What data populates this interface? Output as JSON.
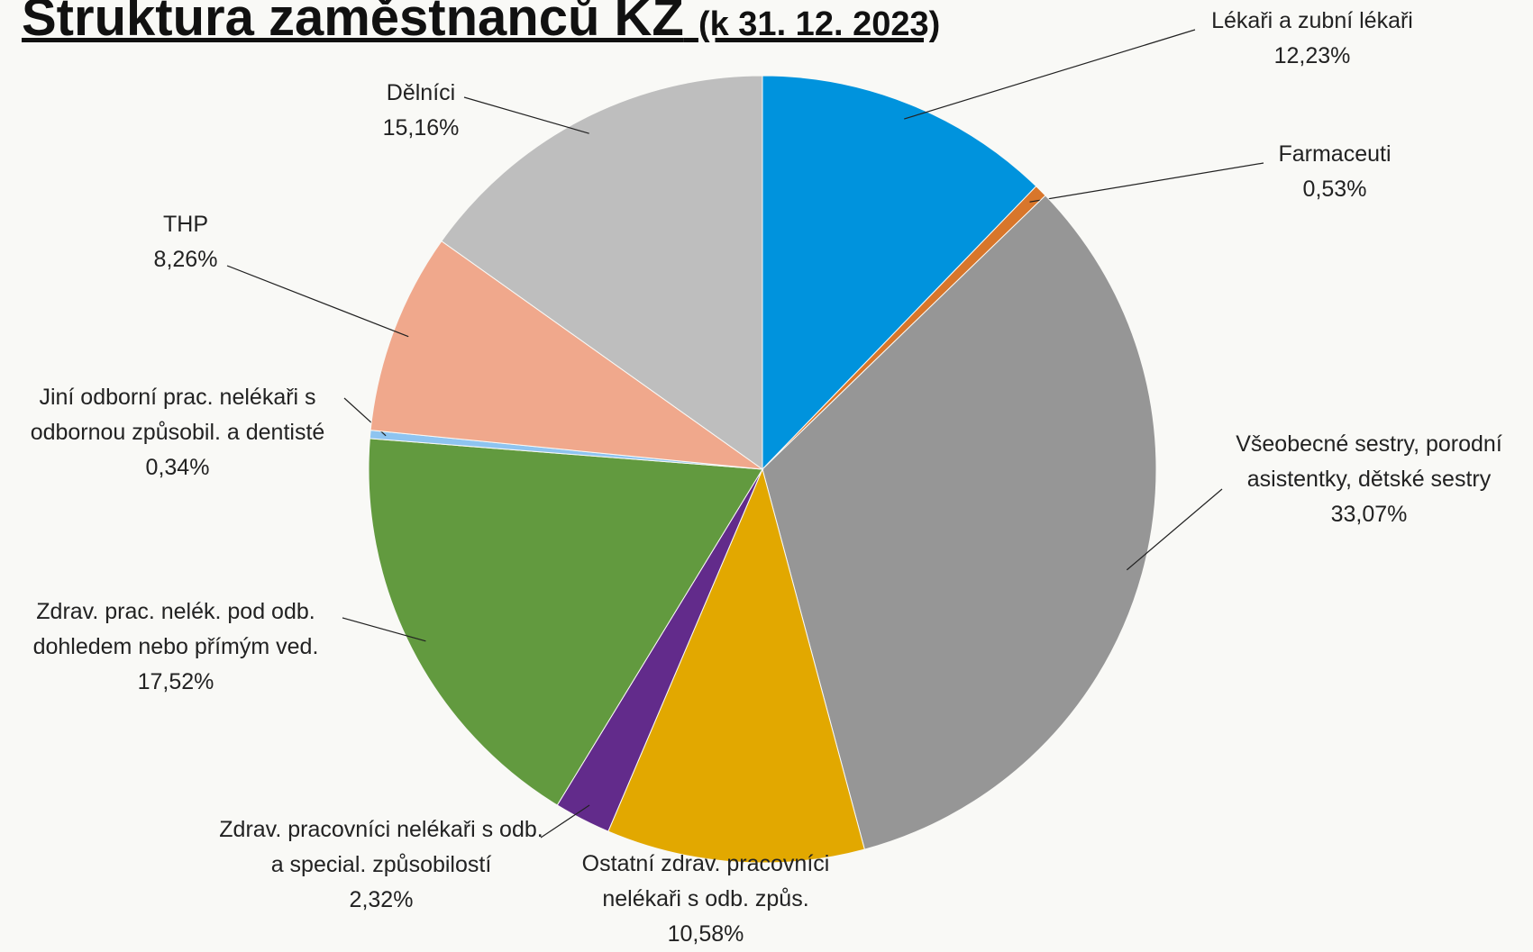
{
  "chart_data": {
    "type": "pie",
    "title": "Struktura zaměstnanců KZ",
    "subtitle": "(k 31. 12. 2023)",
    "categories": [
      "Lékaři a zubní lékaři",
      "Farmaceuti",
      "Všeobecné sestry, porodní asistentky, dětské sestry",
      "Ostatní zdrav. pracovníci nelékaři s odb. způs.",
      "Zdrav. pracovníci nelékaři s odb. a special. způsobilostí",
      "Zdrav. prac. nelék. pod odb. dohledem nebo přímým ved.",
      "Jiní odborní prac. nelékaři s odbornou způsobil. a dentisté",
      "THP",
      "Dělníci"
    ],
    "values": [
      12.23,
      0.53,
      33.07,
      10.58,
      2.32,
      17.52,
      0.34,
      8.26,
      15.16
    ],
    "value_labels": [
      "12,23%",
      "0,53%",
      "33,07%",
      "10,58%",
      "2,32%",
      "17,52%",
      "0,34%",
      "8,26%",
      "15,16%"
    ],
    "colors": [
      "#0093dd",
      "#d8762b",
      "#969696",
      "#e2a800",
      "#622b8b",
      "#629a3f",
      "#8ec4f0",
      "#f0a88c",
      "#bebebe"
    ]
  }
}
